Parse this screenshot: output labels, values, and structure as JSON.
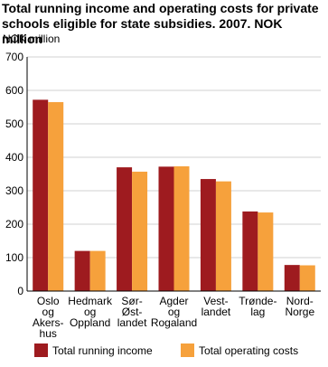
{
  "chart_data": {
    "type": "bar",
    "title": "Total running income and operating costs for private schools eligible for state subsidies. 2007. NOK million",
    "y_label": "NOK million",
    "categories": [
      "Oslo\nog\nAkers-\nhus",
      "Hedmark\nog\nOppland",
      "Sør-\nØst-\nlandet",
      "Agder\nog\nRogaland",
      "Vest-\nlandet",
      "Trønde-\nlag",
      "Nord-\nNorge"
    ],
    "series": [
      {
        "name": "Total running income",
        "color": "#9e1b1f",
        "values": [
          572,
          120,
          370,
          372,
          335,
          238,
          78
        ]
      },
      {
        "name": "Total operating costs",
        "color": "#f6a13c",
        "values": [
          565,
          120,
          357,
          373,
          328,
          235,
          77
        ]
      }
    ],
    "ylim": [
      0,
      700
    ],
    "yticks": [
      0,
      100,
      200,
      300,
      400,
      500,
      600,
      700
    ],
    "grid": true
  }
}
